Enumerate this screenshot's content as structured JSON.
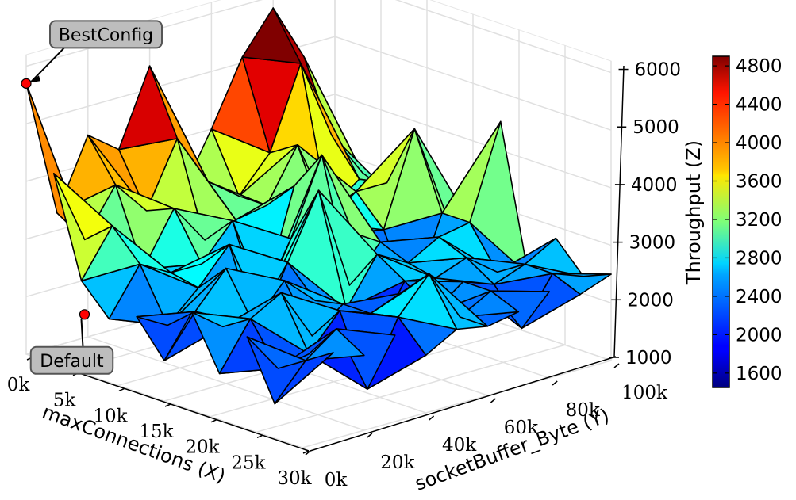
{
  "chart_data": {
    "type": "surface3d",
    "title": "",
    "x_axis": {
      "label": "maxConnections (X)",
      "range": [
        0,
        30000
      ],
      "ticks": [
        {
          "value": 0,
          "label": "0k"
        },
        {
          "value": 5000,
          "label": "5k"
        },
        {
          "value": 10000,
          "label": "10k"
        },
        {
          "value": 15000,
          "label": "15k"
        },
        {
          "value": 20000,
          "label": "20k"
        },
        {
          "value": 25000,
          "label": "25k"
        },
        {
          "value": 30000,
          "label": "30k"
        }
      ]
    },
    "y_axis": {
      "label": "socketBuffer_Byte (Y)",
      "range": [
        0,
        100000
      ],
      "ticks": [
        {
          "value": 0,
          "label": "0k"
        },
        {
          "value": 20000,
          "label": "20k"
        },
        {
          "value": 40000,
          "label": "40k"
        },
        {
          "value": 60000,
          "label": "60k"
        },
        {
          "value": 80000,
          "label": "80k"
        },
        {
          "value": 100000,
          "label": "100k"
        }
      ]
    },
    "z_axis": {
      "label": "Throughput (Z)",
      "range": [
        1000,
        6200
      ],
      "ticks": [
        {
          "value": 1000,
          "label": "1000"
        },
        {
          "value": 2000,
          "label": "2000"
        },
        {
          "value": 3000,
          "label": "3000"
        },
        {
          "value": 4000,
          "label": "4000"
        },
        {
          "value": 5000,
          "label": "5000"
        },
        {
          "value": 6000,
          "label": "6000"
        }
      ]
    },
    "colorbar": {
      "colormap": "jet",
      "range": [
        1450,
        4900
      ],
      "ticks": [
        {
          "value": 1600,
          "label": "1600"
        },
        {
          "value": 2000,
          "label": "2000"
        },
        {
          "value": 2400,
          "label": "2400"
        },
        {
          "value": 2800,
          "label": "2800"
        },
        {
          "value": 3200,
          "label": "3200"
        },
        {
          "value": 3600,
          "label": "3600"
        },
        {
          "value": 4000,
          "label": "4000"
        },
        {
          "value": 4400,
          "label": "4400"
        },
        {
          "value": 4800,
          "label": "4800"
        }
      ]
    },
    "grid": true,
    "annotations": [
      {
        "label": "BestConfig",
        "x": 0,
        "y": 0,
        "z": 5700,
        "marker_color": "#ff0000"
      },
      {
        "label": "Default",
        "x": 6000,
        "y": 1000,
        "z": 2000,
        "marker_color": "#ff0000"
      }
    ],
    "surface_grid": {
      "x": [
        0,
        3000,
        6000,
        9000,
        12000,
        15000,
        18000,
        21000,
        24000,
        27000,
        30000
      ],
      "y": [
        0,
        10000,
        20000,
        30000,
        40000,
        50000,
        60000,
        70000,
        80000,
        90000,
        100000
      ],
      "z": [
        [
          5700,
          3300,
          4500,
          4100,
          5400,
          3000,
          4000,
          5100,
          5800,
          4800,
          2500
        ],
        [
          4300,
          3000,
          3800,
          3200,
          4300,
          3400,
          3000,
          3600,
          5000,
          3600,
          2800
        ],
        [
          2600,
          3400,
          2500,
          3400,
          2700,
          2900,
          3000,
          3900,
          2600,
          3000,
          2600
        ],
        [
          2100,
          2900,
          2600,
          2600,
          3200,
          1700,
          3500,
          2700,
          3100,
          3100,
          2700
        ],
        [
          2300,
          2000,
          2500,
          3100,
          1800,
          2900,
          4200,
          2700,
          2600,
          4200,
          2600
        ],
        [
          1700,
          2400,
          3000,
          1700,
          2800,
          3900,
          2100,
          2700,
          1500,
          2900,
          2500
        ],
        [
          2700,
          2300,
          2200,
          2800,
          2300,
          2000,
          2800,
          2500,
          2800,
          2900,
          4500
        ],
        [
          1800,
          2600,
          2900,
          2000,
          2400,
          1600,
          2500,
          2400,
          2600,
          2200,
          2000
        ],
        [
          2600,
          1900,
          2000,
          2600,
          2400,
          2600,
          2100,
          2500,
          2300,
          2500,
          2800
        ],
        [
          1600,
          2200,
          2600,
          1400,
          2500,
          3100,
          2200,
          2500,
          1700,
          2500,
          2300
        ],
        [
          2200,
          2500,
          2300,
          2500,
          2000,
          2300,
          2200,
          2300,
          2500,
          2300,
          2500
        ]
      ]
    }
  }
}
